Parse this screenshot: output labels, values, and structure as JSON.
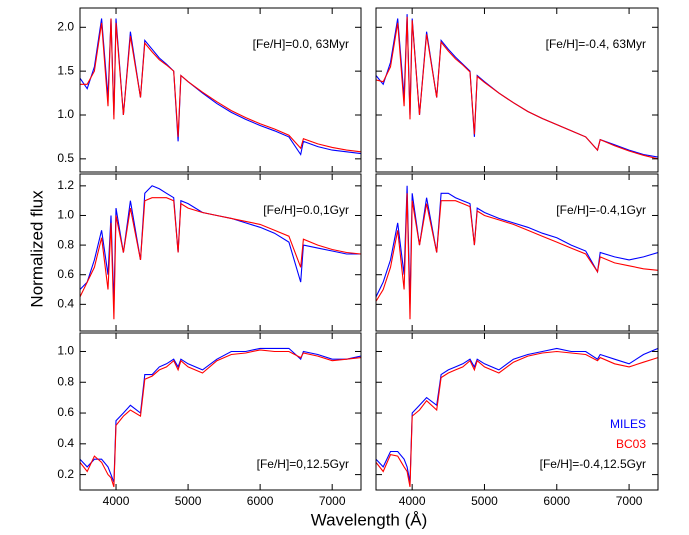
{
  "figure": {
    "xlabel": "Wavelength (Å)",
    "ylabel": "Normalized flux"
  },
  "chart_data": [
    {
      "type": "line",
      "annotation": "[Fe/H]=0.0, 63Myr",
      "x": [
        3500,
        3600,
        3700,
        3800,
        3889,
        3930,
        3970,
        4000,
        4102,
        4200,
        4340,
        4400,
        4500,
        4600,
        4700,
        4800,
        4861,
        4900,
        5000,
        5200,
        5400,
        5600,
        5800,
        6000,
        6200,
        6400,
        6563,
        6600,
        6800,
        7000,
        7200,
        7400
      ],
      "xlim": [
        3500,
        7400
      ],
      "xticks": [
        4000,
        5000,
        6000,
        7000
      ],
      "ylim": [
        0.35,
        2.22
      ],
      "yticks": [
        0.5,
        {
          "value": 1.0,
          "label": "1.0"
        },
        1.5,
        {
          "value": 2.0,
          "label": "2.0"
        }
      ],
      "series": [
        {
          "name": "MILES",
          "color": "#0000ff",
          "values": [
            1.42,
            1.3,
            1.55,
            2.1,
            1.2,
            2.1,
            1.0,
            2.1,
            1.0,
            1.95,
            1.2,
            1.85,
            1.75,
            1.65,
            1.58,
            1.5,
            0.7,
            1.45,
            1.38,
            1.25,
            1.13,
            1.03,
            0.95,
            0.88,
            0.82,
            0.75,
            0.55,
            0.7,
            0.64,
            0.6,
            0.58,
            0.56
          ]
        },
        {
          "name": "BC03",
          "color": "#ff0000",
          "values": [
            1.35,
            1.35,
            1.5,
            2.05,
            1.1,
            2.1,
            0.95,
            2.05,
            1.0,
            1.9,
            1.2,
            1.82,
            1.72,
            1.63,
            1.57,
            1.5,
            0.75,
            1.45,
            1.38,
            1.26,
            1.15,
            1.05,
            0.97,
            0.9,
            0.84,
            0.77,
            0.62,
            0.73,
            0.67,
            0.63,
            0.6,
            0.58
          ]
        }
      ]
    },
    {
      "type": "line",
      "annotation": "[Fe/H]=-0.4, 63Myr",
      "x": [
        3500,
        3600,
        3700,
        3800,
        3889,
        3930,
        3970,
        4000,
        4102,
        4200,
        4340,
        4400,
        4500,
        4600,
        4700,
        4800,
        4861,
        4900,
        5000,
        5200,
        5400,
        5600,
        5800,
        6000,
        6200,
        6400,
        6563,
        6600,
        6800,
        7000,
        7200,
        7400
      ],
      "xlim": [
        3500,
        7400
      ],
      "xticks": [
        4000,
        5000,
        6000,
        7000
      ],
      "ylim": [
        0.35,
        2.22
      ],
      "yticks": [
        0.5,
        1,
        1.5,
        2
      ],
      "series": [
        {
          "name": "MILES",
          "color": "#0000ff",
          "values": [
            1.45,
            1.35,
            1.6,
            2.1,
            1.2,
            2.15,
            1.0,
            2.1,
            1.0,
            1.95,
            1.2,
            1.85,
            1.75,
            1.66,
            1.58,
            1.5,
            0.75,
            1.45,
            1.38,
            1.25,
            1.14,
            1.04,
            0.96,
            0.89,
            0.82,
            0.75,
            0.6,
            0.72,
            0.66,
            0.6,
            0.55,
            0.52
          ]
        },
        {
          "name": "BC03",
          "color": "#ff0000",
          "values": [
            1.4,
            1.38,
            1.55,
            2.05,
            1.1,
            2.12,
            0.95,
            2.08,
            1.0,
            1.92,
            1.2,
            1.83,
            1.73,
            1.64,
            1.57,
            1.49,
            0.78,
            1.44,
            1.37,
            1.25,
            1.14,
            1.04,
            0.96,
            0.89,
            0.82,
            0.75,
            0.6,
            0.72,
            0.65,
            0.59,
            0.54,
            0.5
          ]
        }
      ]
    },
    {
      "type": "line",
      "annotation": "[Fe/H]=0.0,1Gyr",
      "x": [
        3500,
        3600,
        3700,
        3800,
        3889,
        3930,
        3970,
        4000,
        4102,
        4200,
        4340,
        4400,
        4500,
        4600,
        4700,
        4800,
        4861,
        4900,
        5000,
        5200,
        5400,
        5600,
        5800,
        6000,
        6200,
        6400,
        6563,
        6600,
        6800,
        7000,
        7200,
        7400
      ],
      "xlim": [
        3500,
        7400
      ],
      "xticks": [
        4000,
        5000,
        6000,
        7000
      ],
      "ylim": [
        0.22,
        1.28
      ],
      "yticks": [
        0.4,
        0.6,
        0.8,
        {
          "value": 1.0,
          "label": "1.0"
        },
        1.2
      ],
      "series": [
        {
          "name": "MILES",
          "color": "#0000ff",
          "values": [
            0.5,
            0.55,
            0.7,
            0.9,
            0.6,
            1.0,
            0.4,
            1.05,
            0.75,
            1.1,
            0.7,
            1.15,
            1.2,
            1.18,
            1.15,
            1.12,
            0.75,
            1.1,
            1.08,
            1.02,
            1.0,
            0.98,
            0.95,
            0.92,
            0.88,
            0.82,
            0.55,
            0.8,
            0.78,
            0.76,
            0.74,
            0.74
          ]
        },
        {
          "name": "BC03",
          "color": "#ff0000",
          "values": [
            0.45,
            0.55,
            0.65,
            0.85,
            0.5,
            0.95,
            0.3,
            1.0,
            0.75,
            1.05,
            0.7,
            1.1,
            1.12,
            1.12,
            1.12,
            1.1,
            0.75,
            1.08,
            1.05,
            1.02,
            1.0,
            0.98,
            0.96,
            0.94,
            0.9,
            0.86,
            0.65,
            0.84,
            0.8,
            0.77,
            0.75,
            0.74
          ]
        }
      ]
    },
    {
      "type": "line",
      "annotation": "[Fe/H]=-0.4,1Gyr",
      "x": [
        3500,
        3600,
        3700,
        3800,
        3889,
        3930,
        3970,
        4000,
        4102,
        4200,
        4340,
        4400,
        4500,
        4600,
        4700,
        4800,
        4861,
        4900,
        5000,
        5200,
        5400,
        5600,
        5800,
        6000,
        6200,
        6400,
        6563,
        6600,
        6800,
        7000,
        7200,
        7400
      ],
      "xlim": [
        3500,
        7400
      ],
      "xticks": [
        4000,
        5000,
        6000,
        7000
      ],
      "ylim": [
        0.22,
        1.28
      ],
      "yticks": [
        0.4,
        0.6,
        0.8,
        1,
        1.2
      ],
      "series": [
        {
          "name": "MILES",
          "color": "#0000ff",
          "values": [
            0.45,
            0.55,
            0.7,
            0.95,
            0.6,
            1.2,
            0.4,
            1.15,
            0.8,
            1.12,
            0.75,
            1.15,
            1.15,
            1.12,
            1.1,
            1.08,
            0.8,
            1.05,
            1.02,
            0.98,
            0.95,
            0.92,
            0.88,
            0.85,
            0.8,
            0.76,
            0.62,
            0.75,
            0.72,
            0.7,
            0.72,
            0.75
          ]
        },
        {
          "name": "BC03",
          "color": "#ff0000",
          "values": [
            0.42,
            0.5,
            0.65,
            0.9,
            0.5,
            1.15,
            0.3,
            1.1,
            0.8,
            1.08,
            0.75,
            1.1,
            1.1,
            1.1,
            1.08,
            1.06,
            0.8,
            1.03,
            1.0,
            0.97,
            0.94,
            0.9,
            0.86,
            0.82,
            0.78,
            0.74,
            0.62,
            0.72,
            0.68,
            0.66,
            0.64,
            0.63
          ]
        }
      ]
    },
    {
      "type": "line",
      "annotation": "[Fe/H]=0,12.5Gyr",
      "x": [
        3500,
        3600,
        3700,
        3800,
        3889,
        3930,
        3970,
        4000,
        4102,
        4200,
        4340,
        4400,
        4500,
        4600,
        4700,
        4800,
        4861,
        4900,
        5000,
        5200,
        5400,
        5600,
        5800,
        6000,
        6200,
        6400,
        6563,
        6600,
        6800,
        7000,
        7200,
        7400
      ],
      "xlim": [
        3500,
        7400
      ],
      "xticks": [
        4000,
        5000,
        6000,
        7000
      ],
      "ylim": [
        0.1,
        1.12
      ],
      "yticks": [
        0.2,
        0.4,
        0.6,
        0.8,
        {
          "value": 1.0,
          "label": "1.0"
        }
      ],
      "series": [
        {
          "name": "MILES",
          "color": "#0000ff",
          "values": [
            0.3,
            0.25,
            0.3,
            0.3,
            0.25,
            0.2,
            0.15,
            0.55,
            0.6,
            0.65,
            0.6,
            0.85,
            0.85,
            0.9,
            0.92,
            0.95,
            0.9,
            0.95,
            0.92,
            0.88,
            0.95,
            1.0,
            1.0,
            1.02,
            1.02,
            1.02,
            0.95,
            1.0,
            0.98,
            0.95,
            0.95,
            0.97
          ]
        },
        {
          "name": "BC03",
          "color": "#ff0000",
          "values": [
            0.28,
            0.22,
            0.32,
            0.28,
            0.2,
            0.18,
            0.12,
            0.52,
            0.58,
            0.62,
            0.58,
            0.82,
            0.84,
            0.88,
            0.9,
            0.94,
            0.88,
            0.94,
            0.9,
            0.86,
            0.94,
            0.98,
            0.99,
            1.01,
            1.0,
            1.0,
            0.96,
            0.99,
            0.97,
            0.94,
            0.95,
            0.96
          ]
        }
      ]
    },
    {
      "type": "line",
      "annotation": "[Fe/H]=-0.4,12.5Gyr",
      "legend": "lower right",
      "x": [
        3500,
        3600,
        3700,
        3800,
        3889,
        3930,
        3970,
        4000,
        4102,
        4200,
        4340,
        4400,
        4500,
        4600,
        4700,
        4800,
        4861,
        4900,
        5000,
        5200,
        5400,
        5600,
        5800,
        6000,
        6200,
        6400,
        6563,
        6600,
        6800,
        7000,
        7200,
        7400
      ],
      "xlim": [
        3500,
        7400
      ],
      "xticks": [
        4000,
        5000,
        6000,
        7000
      ],
      "ylim": [
        0.1,
        1.12
      ],
      "yticks": [
        0.2,
        0.4,
        0.6,
        0.8,
        1
      ],
      "series": [
        {
          "name": "MILES",
          "color": "#0000ff",
          "values": [
            0.3,
            0.25,
            0.35,
            0.35,
            0.3,
            0.25,
            0.15,
            0.6,
            0.65,
            0.7,
            0.65,
            0.85,
            0.88,
            0.9,
            0.92,
            0.95,
            0.9,
            0.95,
            0.92,
            0.88,
            0.95,
            0.98,
            1.0,
            1.02,
            1.0,
            1.0,
            0.95,
            0.98,
            0.95,
            0.92,
            0.98,
            1.02
          ]
        },
        {
          "name": "BC03",
          "color": "#ff0000",
          "values": [
            0.28,
            0.22,
            0.33,
            0.32,
            0.25,
            0.22,
            0.12,
            0.58,
            0.62,
            0.68,
            0.62,
            0.83,
            0.86,
            0.88,
            0.9,
            0.94,
            0.88,
            0.94,
            0.9,
            0.86,
            0.93,
            0.97,
            0.99,
            1.0,
            0.99,
            0.98,
            0.94,
            0.96,
            0.92,
            0.9,
            0.93,
            0.96
          ]
        }
      ]
    }
  ]
}
